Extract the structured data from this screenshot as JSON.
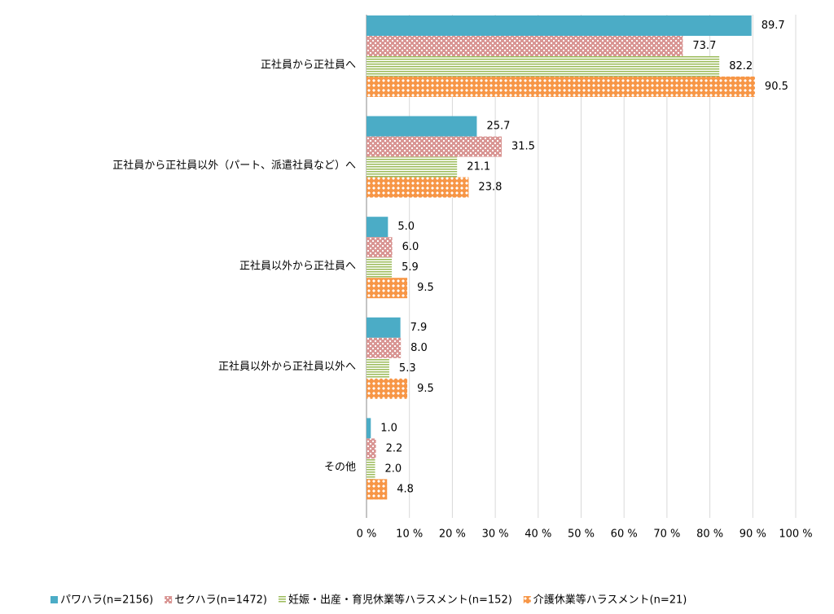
{
  "chart_data": {
    "type": "hbar",
    "categories": [
      "正社員から正社員へ",
      "正社員から正社員以外（パート、派遣社員など）へ",
      "正社員以外から正社員へ",
      "正社員以外から正社員以外へ",
      "その他"
    ],
    "series": [
      {
        "name": "パワハラ(n=2156)",
        "color": "#4bacc6",
        "values": [
          89.7,
          25.7,
          5.0,
          7.9,
          1.0
        ],
        "value_labels": [
          "89.7",
          "25.7",
          "5.0",
          "7.9",
          "1.0"
        ]
      },
      {
        "name": "セクハラ(n=1472)",
        "color": "#d99694",
        "values": [
          73.7,
          31.5,
          6.0,
          8.0,
          2.2
        ],
        "value_labels": [
          "73.7",
          "31.5",
          "6.0",
          "8.0",
          "2.2"
        ]
      },
      {
        "name": "妊娠・出産・育児休業等ハラスメント(n=152)",
        "color": "#9bbb59",
        "values": [
          82.2,
          21.1,
          5.9,
          5.3,
          2.0
        ],
        "value_labels": [
          "82.2",
          "21.1",
          "5.9",
          "5.3",
          "2.0"
        ]
      },
      {
        "name": "介護休業等ハラスメント(n=21)",
        "color": "#f79646",
        "values": [
          90.5,
          23.8,
          9.5,
          9.5,
          4.8
        ],
        "value_labels": [
          "90.5",
          "23.8",
          "9.5",
          "9.5",
          "4.8"
        ]
      }
    ],
    "xlim": [
      0,
      100
    ],
    "xticks": [
      {
        "value": 0,
        "label": "0 %"
      },
      {
        "value": 10,
        "label": "10 %"
      },
      {
        "value": 20,
        "label": "20 %"
      },
      {
        "value": 30,
        "label": "30 %"
      },
      {
        "value": 40,
        "label": "40 %"
      },
      {
        "value": 50,
        "label": "50 %"
      },
      {
        "value": 60,
        "label": "60 %"
      },
      {
        "value": 70,
        "label": "70 %"
      },
      {
        "value": 80,
        "label": "80 %"
      },
      {
        "value": 90,
        "label": "90 %"
      },
      {
        "value": 100,
        "label": "100 %"
      }
    ],
    "grid": true
  }
}
